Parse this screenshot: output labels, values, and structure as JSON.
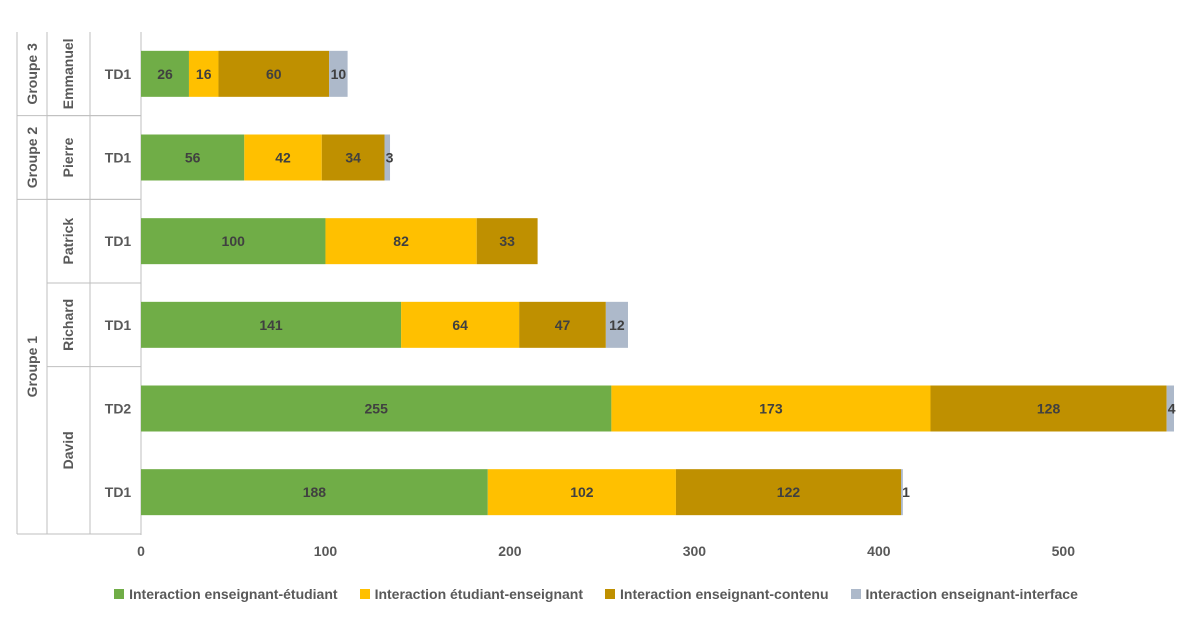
{
  "chart_data": {
    "type": "bar",
    "orientation": "horizontal",
    "stacked": true,
    "title": "",
    "xlabel": "",
    "ylabel": "",
    "xlim": [
      0,
      560
    ],
    "x_ticks": [
      0,
      100,
      200,
      300,
      400,
      500
    ],
    "grid": false,
    "legend_position": "bottom",
    "groups": [
      {
        "name": "Groupe 3",
        "teachers": [
          {
            "name": "Emmanuel",
            "sessions": [
              "TD1"
            ]
          }
        ]
      },
      {
        "name": "Groupe 2",
        "teachers": [
          {
            "name": "Pierre",
            "sessions": [
              "TD1"
            ]
          }
        ]
      },
      {
        "name": "Groupe 1",
        "teachers": [
          {
            "name": "Patrick",
            "sessions": [
              "TD1"
            ]
          },
          {
            "name": "Richard",
            "sessions": [
              "TD1"
            ]
          },
          {
            "name": "David",
            "sessions": [
              "TD2",
              "TD1"
            ]
          }
        ]
      }
    ],
    "categories": [
      "Emmanuel TD1",
      "Pierre TD1",
      "Patrick TD1",
      "Richard TD1",
      "David TD2",
      "David TD1"
    ],
    "series": [
      {
        "name": "Interaction enseignant-étudiant",
        "color": "#70ad47",
        "values": [
          26,
          56,
          100,
          141,
          255,
          188
        ]
      },
      {
        "name": "Interaction étudiant-enseignant",
        "color": "#ffc000",
        "values": [
          16,
          42,
          82,
          64,
          173,
          102
        ]
      },
      {
        "name": "Interaction enseignant-contenu",
        "color": "#bf9000",
        "values": [
          60,
          34,
          33,
          47,
          128,
          122
        ]
      },
      {
        "name": "Interaction enseignant-interface",
        "color": "#adb9ca",
        "values": [
          10,
          3,
          0,
          12,
          4,
          1
        ]
      }
    ]
  }
}
